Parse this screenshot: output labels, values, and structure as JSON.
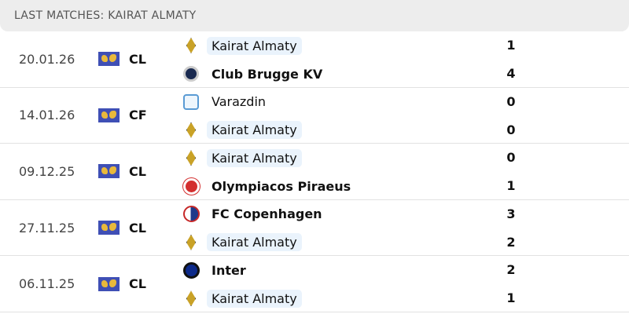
{
  "title": "LAST MATCHES: KAIRAT ALMATY",
  "matches": [
    {
      "date": "20.01.26",
      "competition": "CL",
      "home": {
        "name": "Kairat Almaty",
        "logo": "kairat",
        "score": "1"
      },
      "away": {
        "name": "Club Brugge KV",
        "logo": "brugge",
        "score": "4"
      }
    },
    {
      "date": "14.01.26",
      "competition": "CF",
      "home": {
        "name": "Varazdin",
        "logo": "varazdin",
        "score": "0"
      },
      "away": {
        "name": "Kairat Almaty",
        "logo": "kairat",
        "score": "0"
      }
    },
    {
      "date": "09.12.25",
      "competition": "CL",
      "home": {
        "name": "Kairat Almaty",
        "logo": "kairat",
        "score": "0"
      },
      "away": {
        "name": "Olympiacos Piraeus",
        "logo": "oly",
        "score": "1"
      }
    },
    {
      "date": "27.11.25",
      "competition": "CL",
      "home": {
        "name": "FC Copenhagen",
        "logo": "fcc",
        "score": "3"
      },
      "away": {
        "name": "Kairat Almaty",
        "logo": "kairat",
        "score": "2"
      }
    },
    {
      "date": "06.11.25",
      "competition": "CL",
      "home": {
        "name": "Inter",
        "logo": "inter",
        "score": "2"
      },
      "away": {
        "name": "Kairat Almaty",
        "logo": "kairat",
        "score": "1"
      }
    }
  ]
}
